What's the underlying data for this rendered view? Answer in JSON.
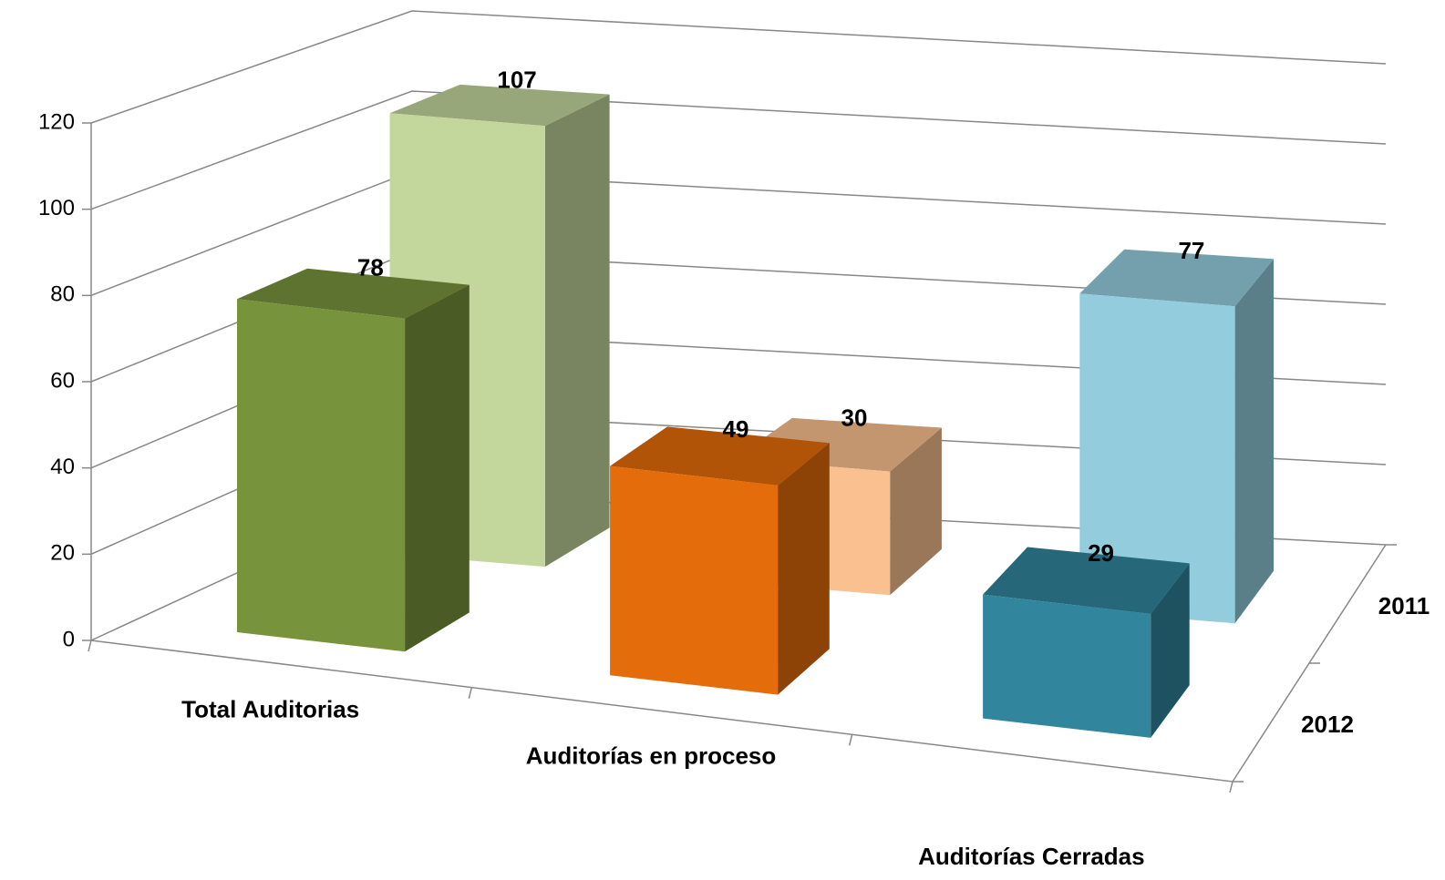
{
  "chart_data": {
    "type": "bar3d",
    "categories": [
      "Total Auditorias",
      "Auditorías en proceso",
      "Auditorías Cerradas"
    ],
    "series": [
      {
        "name": "2012",
        "colors": [
          "#77933c",
          "#e46c0a",
          "#31859c"
        ],
        "values": [
          78,
          49,
          29
        ]
      },
      {
        "name": "2011",
        "colors": [
          "#c3d69b",
          "#fac090",
          "#93cddd"
        ],
        "values": [
          107,
          30,
          77
        ]
      }
    ],
    "ylim": [
      0,
      120
    ],
    "yticks": [
      0,
      20,
      40,
      60,
      80,
      100,
      120
    ],
    "grid": true
  }
}
